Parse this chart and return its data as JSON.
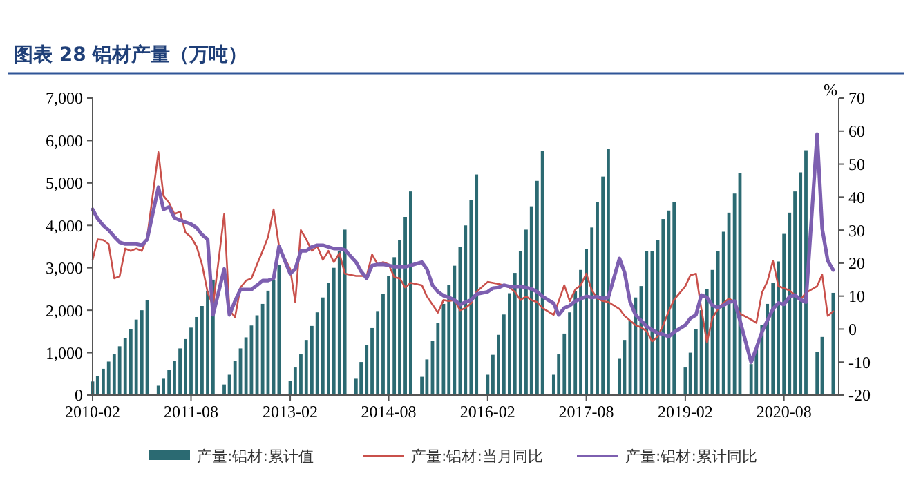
{
  "chart_data": {
    "type": "bar",
    "title": "图表 28   铝材产量（万吨）",
    "y2label": "%",
    "x": [
      "2010-02",
      "2010-03",
      "2010-04",
      "2010-05",
      "2010-06",
      "2010-07",
      "2010-08",
      "2010-09",
      "2010-10",
      "2010-11",
      "2010-12",
      "2011-02",
      "2011-03",
      "2011-04",
      "2011-05",
      "2011-06",
      "2011-07",
      "2011-08",
      "2011-09",
      "2011-10",
      "2011-11",
      "2011-12",
      "2012-02",
      "2012-03",
      "2012-04",
      "2012-05",
      "2012-06",
      "2012-07",
      "2012-08",
      "2012-09",
      "2012-10",
      "2012-11",
      "2012-12",
      "2013-02",
      "2013-03",
      "2013-04",
      "2013-05",
      "2013-06",
      "2013-07",
      "2013-08",
      "2013-09",
      "2013-10",
      "2013-11",
      "2013-12",
      "2014-02",
      "2014-03",
      "2014-04",
      "2014-05",
      "2014-06",
      "2014-07",
      "2014-08",
      "2014-09",
      "2014-10",
      "2014-11",
      "2014-12",
      "2015-02",
      "2015-03",
      "2015-04",
      "2015-05",
      "2015-06",
      "2015-07",
      "2015-08",
      "2015-09",
      "2015-10",
      "2015-11",
      "2015-12",
      "2016-02",
      "2016-03",
      "2016-04",
      "2016-05",
      "2016-06",
      "2016-07",
      "2016-08",
      "2016-09",
      "2016-10",
      "2016-11",
      "2016-12",
      "2017-02",
      "2017-03",
      "2017-04",
      "2017-05",
      "2017-06",
      "2017-07",
      "2017-08",
      "2017-09",
      "2017-10",
      "2017-11",
      "2017-12",
      "2018-02",
      "2018-03",
      "2018-04",
      "2018-05",
      "2018-06",
      "2018-07",
      "2018-08",
      "2018-09",
      "2018-10",
      "2018-11",
      "2018-12",
      "2019-02",
      "2019-03",
      "2019-04",
      "2019-05",
      "2019-06",
      "2019-07",
      "2019-08",
      "2019-09",
      "2019-10",
      "2019-11",
      "2019-12",
      "2020-02",
      "2020-03",
      "2020-04",
      "2020-05",
      "2020-06",
      "2020-07",
      "2020-08",
      "2020-09",
      "2020-10",
      "2020-11",
      "2020-12",
      "2021-02",
      "2021-03",
      "2021-04",
      "2021-05"
    ],
    "xlim": [
      "2010-02",
      "2021-06"
    ],
    "xticks": [
      "2010-02",
      "2011-08",
      "2013-02",
      "2014-08",
      "2016-02",
      "2017-08",
      "2019-02",
      "2020-08"
    ],
    "ylim": [
      0,
      7000
    ],
    "yticks": [
      {
        "value": 0,
        "label": "0"
      },
      {
        "value": 1000,
        "label": "1,000"
      },
      {
        "value": 2000,
        "label": "2,000"
      },
      {
        "value": 3000,
        "label": "3,000"
      },
      {
        "value": 4000,
        "label": "4,000"
      },
      {
        "value": 5000,
        "label": "5,000"
      },
      {
        "value": 6000,
        "label": "6,000"
      },
      {
        "value": 7000,
        "label": "7,000"
      }
    ],
    "y2lim": [
      -20,
      70
    ],
    "y2ticks": [
      -20,
      -10,
      0,
      10,
      20,
      30,
      40,
      50,
      60,
      70
    ],
    "legend": "bottom",
    "series": [
      {
        "name": "产量:铝材:累计值",
        "color": "#2b6a72",
        "values": [
          320,
          450,
          620,
          790,
          960,
          1150,
          1350,
          1550,
          1780,
          2000,
          2230,
          220,
          400,
          590,
          810,
          1100,
          1320,
          1590,
          1840,
          2100,
          2450,
          2720,
          250,
          480,
          800,
          1100,
          1360,
          1640,
          1880,
          2150,
          2460,
          2720,
          3060,
          330,
          650,
          960,
          1300,
          1630,
          1950,
          2300,
          2650,
          3000,
          3400,
          3900,
          400,
          780,
          1180,
          1580,
          1980,
          2380,
          2800,
          3250,
          3650,
          4200,
          4800,
          430,
          840,
          1270,
          1700,
          2150,
          2600,
          3050,
          3500,
          4000,
          4600,
          5200,
          480,
          950,
          1420,
          1900,
          2400,
          2880,
          3400,
          3900,
          4450,
          5050,
          5760,
          480,
          960,
          1450,
          1950,
          2450,
          2950,
          3450,
          3950,
          4550,
          5150,
          5810,
          870,
          1300,
          1760,
          2300,
          2570,
          3400,
          3390,
          3660,
          4150,
          4350,
          4550,
          650,
          1000,
          1560,
          2000,
          2500,
          2950,
          3400,
          3850,
          4300,
          4750,
          5230,
          730,
          1100,
          1650,
          2150,
          2650,
          3150,
          3800,
          4300,
          4800,
          5250,
          5770,
          1020,
          1370,
          null,
          2410
        ]
      },
      {
        "name": "产量:铝材:当月同比",
        "type": "line",
        "axis": "y2",
        "color": "#c9504b",
        "values": [
          21,
          27.2,
          27,
          25.8,
          15.4,
          16,
          24.4,
          23.7,
          24.4,
          23.7,
          27.9,
          53.6,
          40.4,
          38.3,
          34.9,
          35.6,
          29.3,
          27.9,
          25,
          19.6,
          11.2,
          7,
          34.9,
          5.7,
          3.6,
          12.6,
          14.7,
          15.4,
          19.6,
          23.7,
          27.9,
          36.3,
          25,
          18.2,
          8.2,
          30,
          27.2,
          23.7,
          25.1,
          21,
          23.7,
          20.3,
          23,
          16.8,
          16.1,
          16.1,
          16.1,
          22.6,
          19.6,
          20.3,
          19.6,
          15.7,
          15.4,
          12.6,
          14,
          13.3,
          9.9,
          7.4,
          5,
          8.8,
          8.5,
          8.8,
          5.7,
          6.4,
          7.8,
          11.3,
          14.3,
          14,
          13.7,
          13.3,
          12.6,
          11.3,
          8.8,
          9.9,
          8.8,
          8.2,
          6.4,
          4.3,
          8.5,
          13.3,
          8.5,
          12,
          13.3,
          16.8,
          11.7,
          9.3,
          8.5,
          8.2,
          6.1,
          4,
          2.6,
          1.2,
          0.5,
          -0.6,
          -3.7,
          -2.3,
          1.2,
          5.4,
          8.9,
          13,
          16.3,
          16.8,
          6.1,
          -4.1,
          3.3,
          6.1,
          7.9,
          9.3,
          8.2,
          4.7,
          2.9,
          1.9,
          11,
          14.4,
          20.7,
          13,
          12.4,
          11.7,
          10.3,
          8.9,
          11,
          13,
          16.5,
          4,
          5.4
        ]
      },
      {
        "name": "产量:铝材:累计同比",
        "type": "line",
        "axis": "y2",
        "color": "#7d5fb0",
        "values": [
          36.3,
          33.5,
          31.4,
          30,
          28,
          26.3,
          25.8,
          25.8,
          25.8,
          25.4,
          27.2,
          43,
          36.3,
          37,
          33.7,
          33,
          32.4,
          31.8,
          30.7,
          28.6,
          27.2,
          4.3,
          18.2,
          4.3,
          8.5,
          12,
          12,
          12,
          13.3,
          14.7,
          14.7,
          15.4,
          25.1,
          16.8,
          18.2,
          23.7,
          23.7,
          24.9,
          25.4,
          25.4,
          24.9,
          24.4,
          24.4,
          24,
          20.3,
          17.5,
          15.4,
          19.3,
          19.6,
          19.6,
          19.3,
          18.9,
          18.9,
          18.9,
          19.3,
          20.3,
          18.2,
          13.3,
          11.3,
          10.1,
          9.6,
          8.8,
          7.4,
          8.2,
          8.8,
          10.6,
          11.3,
          12.4,
          12.6,
          13.3,
          12.9,
          12.9,
          12.9,
          12.6,
          12.2,
          11.3,
          9.9,
          7.8,
          4.3,
          6.4,
          7.1,
          8.5,
          9.2,
          9.9,
          9.6,
          9.8,
          9.3,
          9.6,
          21.4,
          17.2,
          8.2,
          4.3,
          2.6,
          0.8,
          -0.2,
          -1.2,
          -1.6,
          -2.3,
          -0.9,
          1.2,
          3.3,
          4.3,
          10.3,
          9.6,
          7.2,
          6.5,
          7.2,
          8.2,
          8.5,
          2.6,
          -10,
          -5.8,
          -0.9,
          2.6,
          6.1,
          7.9,
          7.5,
          9.8,
          10.3,
          8.9,
          8.2,
          59.1,
          30.5,
          20.7,
          17.9
        ]
      }
    ]
  }
}
